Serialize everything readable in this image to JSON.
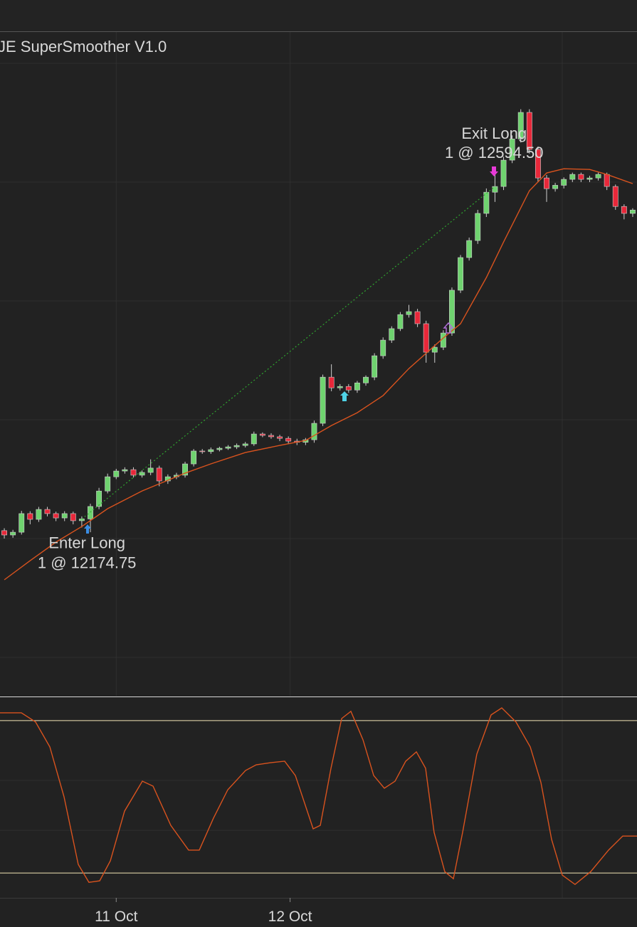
{
  "chart_data": [
    {
      "type": "candlestick",
      "title": "JE SuperSmoother V1.0",
      "up_color": "#6fd36f",
      "down_color": "#e8283a",
      "wick_color": "#cfcfcf",
      "xlim": [
        -0.5,
        73.5
      ],
      "ylim": [
        11951.5,
        12789.5
      ],
      "yticks": [
        12000,
        12150,
        12300,
        12450,
        12600,
        12750
      ],
      "grid": true,
      "xticks": [
        {
          "value": 13,
          "label": "11 Oct"
        },
        {
          "value": 33.2,
          "label": "12 Oct"
        }
      ],
      "open": [
        12160,
        12154.5,
        12158,
        12181.5,
        12174.25,
        12186.75,
        12181.5,
        12176,
        12181.5,
        12172.5,
        12174.75,
        12190.5,
        12210,
        12228,
        12235.25,
        12237,
        12230,
        12233.5,
        12239,
        12222.75,
        12228,
        12230,
        12244.25,
        12260.5,
        12259.75,
        12262.25,
        12264,
        12265.75,
        12267.5,
        12269.5,
        12282,
        12280.25,
        12278.5,
        12276.5,
        12273,
        12271.5,
        12274.75,
        12295.5,
        12353.75,
        12340.25,
        12342,
        12337.5,
        12346.5,
        12353.75,
        12380.75,
        12400.5,
        12415,
        12432.75,
        12436.5,
        12421.25,
        12385.25,
        12391.5,
        12409.5,
        12463.5,
        12504.75,
        12526.25,
        12560.5,
        12587.25,
        12594.5,
        12627.75,
        12654.5,
        12688,
        12641.25,
        12605.25,
        12591.75,
        12596,
        12603.5,
        12609.75,
        12603.5,
        12605.25,
        12609.75,
        12594.5,
        12569.25,
        12560.5
      ],
      "high": [
        12163,
        12161,
        12185,
        12184.5,
        12190,
        12190,
        12184,
        12184.5,
        12184,
        12178,
        12194,
        12214,
        12232,
        12238,
        12240,
        12240,
        12236,
        12250,
        12242,
        12231,
        12233,
        12247,
        12263,
        12263,
        12265,
        12266,
        12268,
        12270,
        12272,
        12285,
        12284,
        12283,
        12281,
        12279,
        12276,
        12277,
        12299,
        12357,
        12370,
        12345,
        12345,
        12349,
        12356,
        12384,
        12404,
        12418,
        12436,
        12445,
        12440,
        12425,
        12395,
        12413,
        12467,
        12508,
        12530,
        12565,
        12592,
        12610,
        12632,
        12659,
        12692,
        12692,
        12645,
        12609,
        12599,
        12606,
        12612,
        12612,
        12608,
        12612,
        12612,
        12597,
        12572,
        12567
      ],
      "low": [
        12150,
        12151,
        12155,
        12168,
        12171,
        12178,
        12172,
        12172,
        12168,
        12164,
        12158,
        12187,
        12207,
        12225,
        12232,
        12227,
        12227,
        12230,
        12216,
        12219,
        12225,
        12227,
        12241,
        12257,
        12257,
        12260,
        12262,
        12263,
        12265,
        12267,
        12278,
        12276,
        12273,
        12269,
        12268,
        12268,
        12271,
        12292,
        12336,
        12337,
        12334,
        12334,
        12343,
        12350,
        12377,
        12397,
        12412,
        12429,
        12417,
        12372,
        12372,
        12388,
        12406,
        12460,
        12501,
        12522,
        12556,
        12575,
        12590,
        12624,
        12650,
        12636,
        12600,
        12575,
        12588,
        12592,
        12600,
        12600,
        12600,
        12602,
        12590,
        12565,
        12553,
        12556
      ],
      "close": [
        12154.5,
        12158,
        12181.5,
        12174.25,
        12186.75,
        12181.5,
        12176,
        12181.5,
        12172.5,
        12174.75,
        12190.5,
        12210,
        12228,
        12235.25,
        12237,
        12230,
        12233.5,
        12239,
        12222.75,
        12228,
        12230,
        12244.25,
        12260.5,
        12259.75,
        12262.25,
        12264,
        12265.75,
        12267.5,
        12269.5,
        12282,
        12280.25,
        12278.5,
        12276.5,
        12273,
        12271.5,
        12274.75,
        12295.5,
        12353.75,
        12340.25,
        12342,
        12337.5,
        12346.5,
        12353.75,
        12380.75,
        12400.5,
        12415,
        12432.75,
        12436.5,
        12421.25,
        12385.25,
        12391.5,
        12409.5,
        12463.5,
        12504.75,
        12526.25,
        12560.5,
        12587.25,
        12594.5,
        12627.75,
        12654.5,
        12688,
        12641.25,
        12605.25,
        12591.75,
        12596,
        12603.5,
        12609.75,
        12603.5,
        12605.25,
        12609.75,
        12594.5,
        12569.25,
        12560.5,
        12564.75
      ],
      "overlay": {
        "color": "#d9531e",
        "x": [
          0,
          3,
          6,
          9,
          12,
          16,
          21,
          24,
          28,
          32,
          35,
          38,
          41,
          44,
          47,
          51,
          53,
          56,
          58,
          61,
          63,
          65,
          68,
          70,
          73
        ],
        "values": [
          12097.9,
          12122.1,
          12145.5,
          12165.2,
          12187.7,
          12210.1,
          12232.6,
          12244.3,
          12258.6,
          12267.6,
          12273.9,
          12292.7,
          12308.9,
          12330.5,
          12364.6,
          12403.2,
          12421.2,
          12479.5,
          12524.4,
          12589.1,
          12611.5,
          12616.9,
          12616.0,
          12609.7,
          12598.1
        ]
      },
      "trade": {
        "color": "#2fa52f",
        "entry_x": 9,
        "entry": 12174.75,
        "exit_x": 57,
        "exit": 12594.5
      },
      "annotations": [
        {
          "label": "Enter Long",
          "detail": "1 @ 12174.75",
          "x": 9.6,
          "price": 12174.75,
          "position": "below"
        },
        {
          "label": "Exit Long",
          "detail": "1 @ 12594.50",
          "x": 56.9,
          "price": 12594.5,
          "position": "above"
        }
      ]
    },
    {
      "type": "line",
      "color": "#d9531e",
      "xlim": [
        -0.5,
        73.5
      ],
      "ylim": [
        -2.3,
        102.3
      ],
      "yticks": [
        32.4,
        58.6
      ],
      "grid": true,
      "levels": [
        10,
        90
      ],
      "level_color": "#f3e6b5",
      "x": [
        -0.5,
        1.98,
        3.63,
        5.29,
        6.94,
        8.59,
        9.83,
        11.08,
        12.32,
        13.97,
        16.04,
        17.28,
        19.34,
        21.41,
        22.65,
        24.3,
        25.96,
        28.02,
        29.26,
        30.92,
        32.57,
        33.81,
        35.88,
        36.71,
        37.95,
        39.19,
        40.26,
        41.67,
        42.91,
        44.15,
        45.39,
        46.63,
        47.87,
        48.94,
        49.93,
        51.17,
        52.17,
        53.24,
        54.89,
        56.55,
        57.79,
        59.44,
        61.1,
        62.34,
        63.58,
        64.82,
        66.3,
        68.12,
        70.19,
        71.84,
        73.5
      ],
      "values": [
        94.1,
        94.1,
        89.3,
        76.2,
        50.0,
        14.5,
        5.1,
        5.9,
        16.4,
        42.5,
        58.2,
        55.6,
        35.0,
        22.0,
        22.0,
        38.8,
        53.7,
        63.8,
        66.8,
        67.9,
        68.7,
        61.2,
        33.2,
        35.0,
        65.0,
        91.1,
        94.9,
        79.9,
        61.2,
        54.5,
        58.2,
        68.7,
        73.6,
        65.0,
        31.3,
        10.7,
        7.0,
        31.3,
        72.4,
        93.0,
        96.7,
        89.3,
        76.2,
        57.5,
        27.6,
        8.9,
        4.0,
        10.7,
        22.0,
        29.4,
        29.4
      ]
    }
  ]
}
